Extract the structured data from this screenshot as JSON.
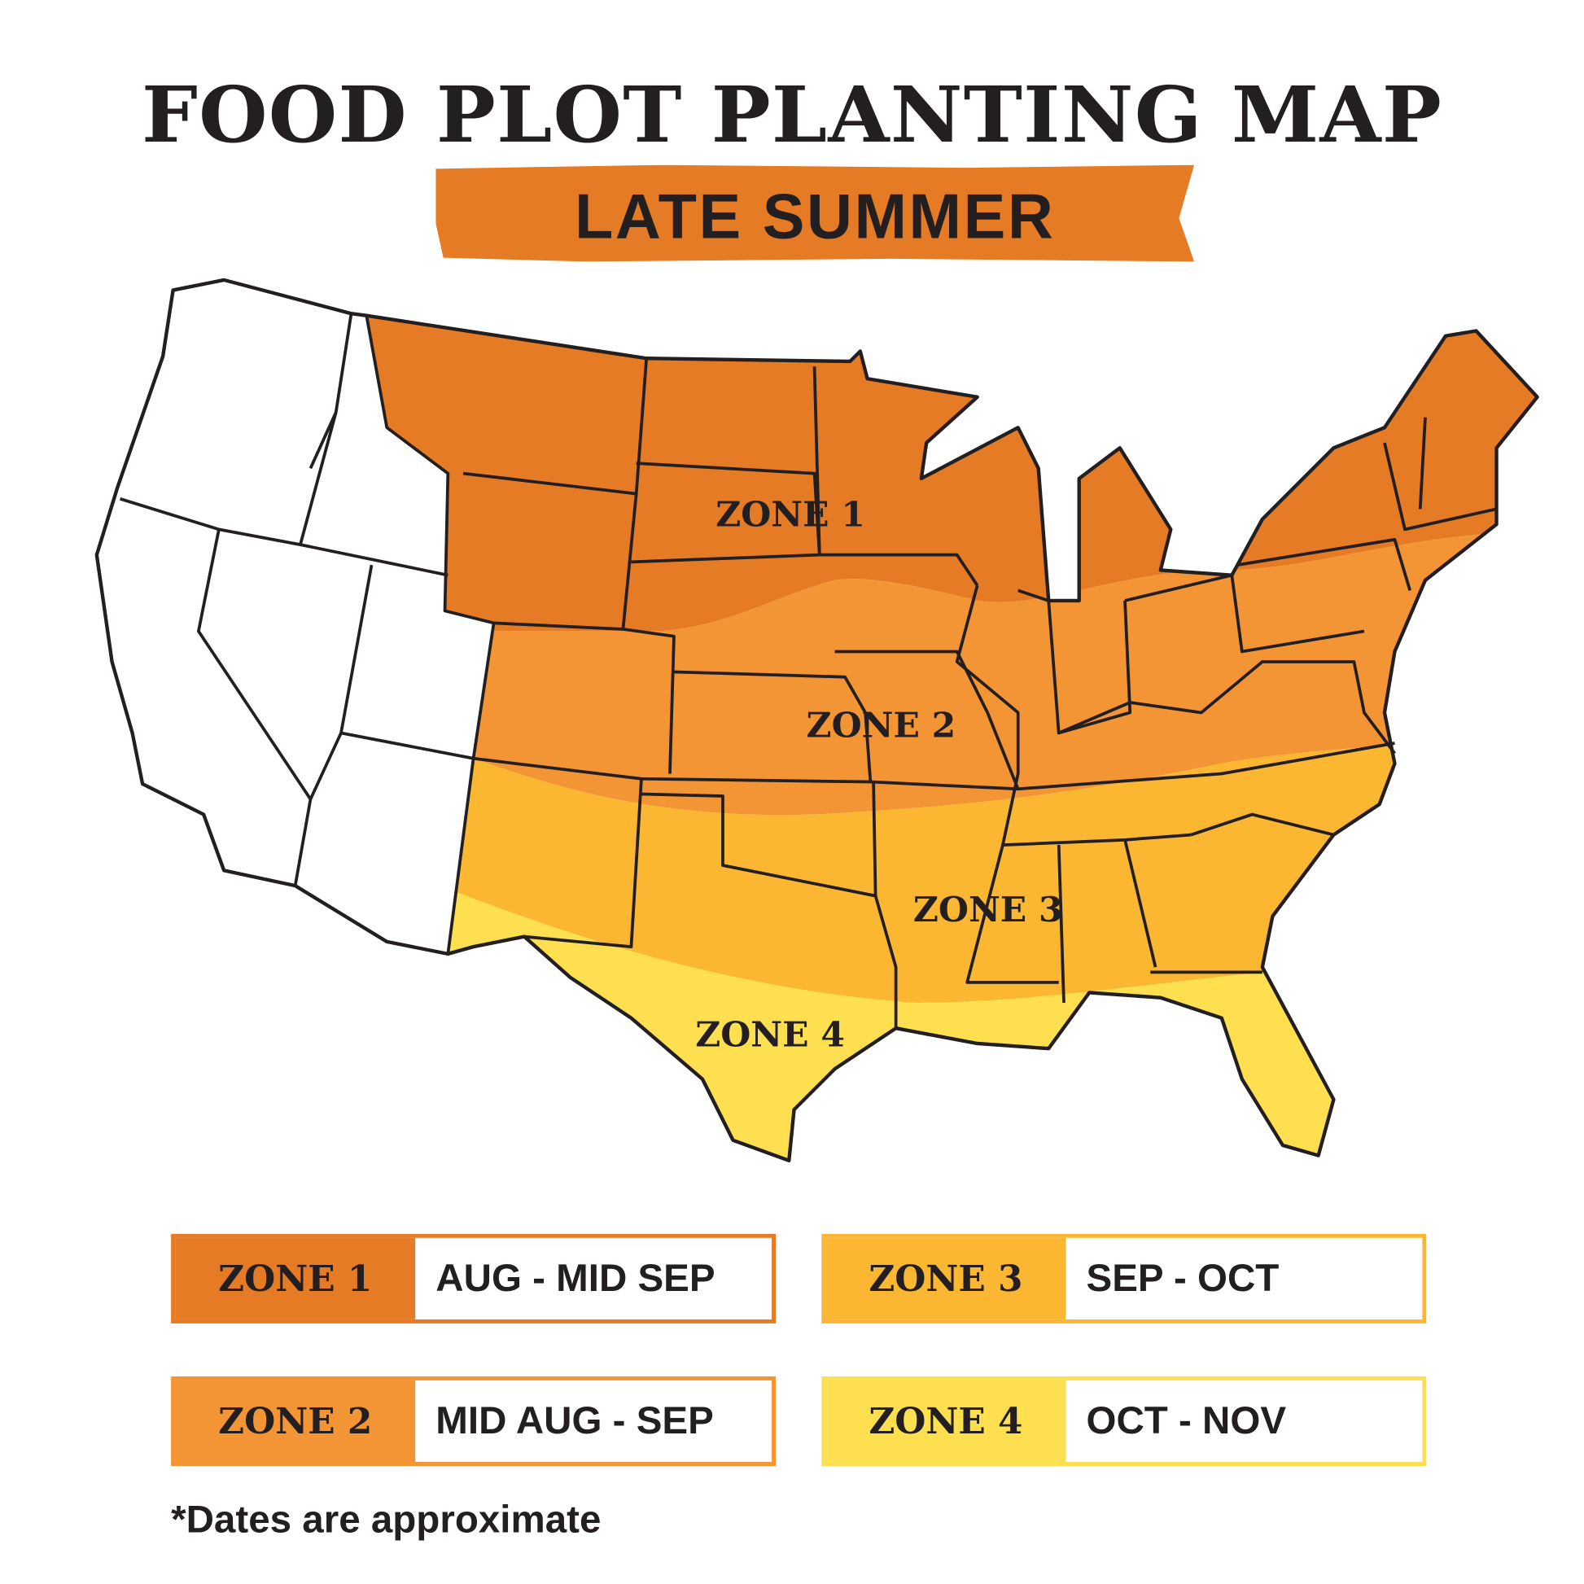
{
  "title": "FOOD PLOT PLANTING MAP",
  "subtitle": "LATE SUMMER",
  "map": {
    "zone_labels": [
      "ZONE 1",
      "ZONE 2",
      "ZONE 3",
      "ZONE 4"
    ],
    "unzoned_color": "#ffffff",
    "border_color": "#231f20"
  },
  "legend": [
    {
      "zone": "ZONE 1",
      "dates": "AUG -  MID SEP",
      "color": "#e57b25"
    },
    {
      "zone": "ZONE 2",
      "dates": "MID AUG - SEP",
      "color": "#f49535"
    },
    {
      "zone": "ZONE 3",
      "dates": "SEP - OCT",
      "color": "#fbb632"
    },
    {
      "zone": "ZONE 4",
      "dates": "OCT - NOV",
      "color": "#fedf50"
    }
  ],
  "footnote": "*Dates are approximate"
}
